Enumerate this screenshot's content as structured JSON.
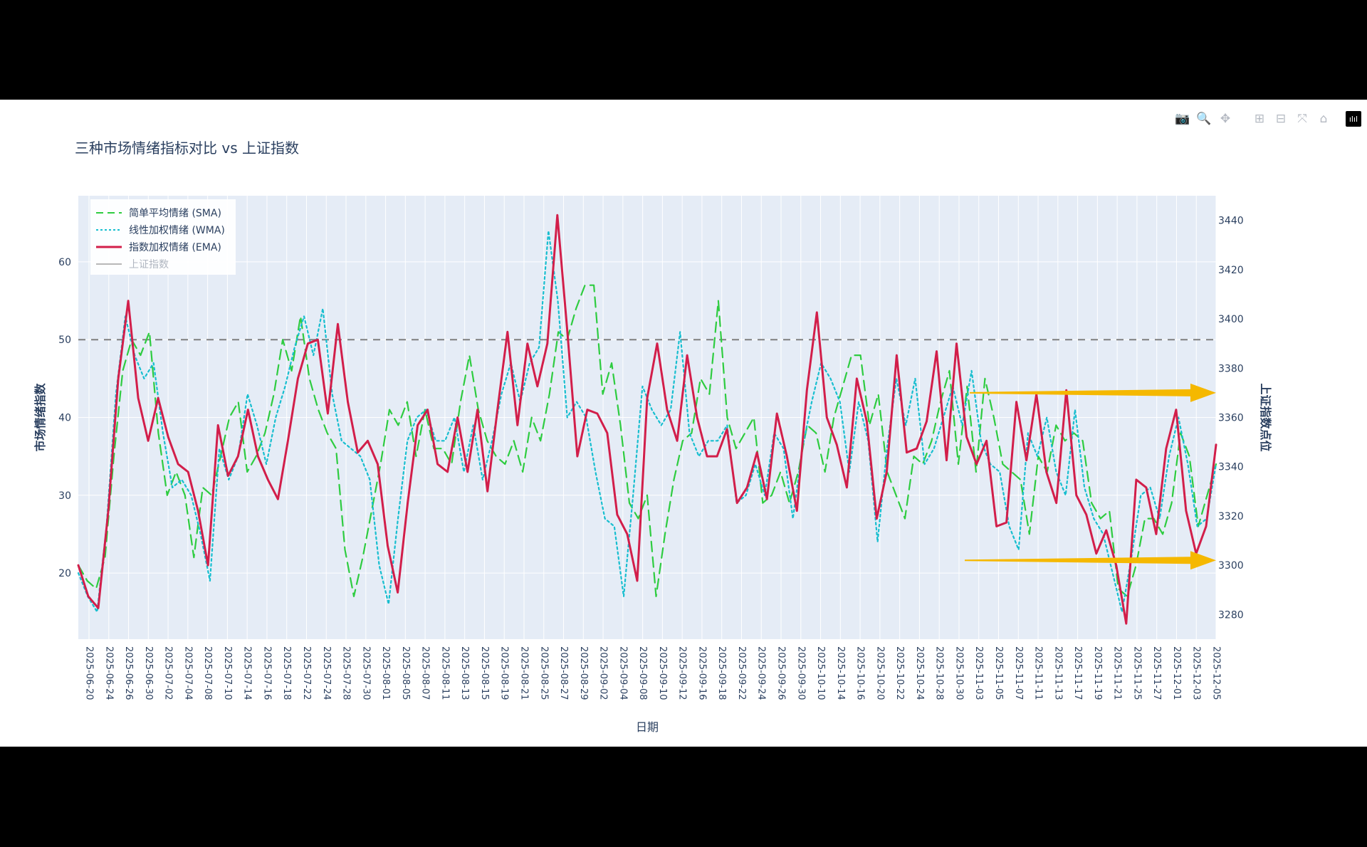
{
  "title": "三种市场情绪指标对比 vs 上证指数",
  "toolbar": {
    "icons": [
      "camera-icon",
      "zoom-icon",
      "pan-icon",
      "zoom-in-icon",
      "zoom-out-icon",
      "autoscale-icon",
      "reset-axes-icon",
      "plotly-logo"
    ],
    "glyphs": [
      "📷",
      "🔍",
      "✥",
      "⊞",
      "⊟",
      "⤧",
      "⌂",
      "ılıl"
    ]
  },
  "colors": {
    "sma": "#2ecc40",
    "wma": "#17becf",
    "ema": "#d21e4a",
    "index": "#b8b8b8",
    "plot_bg": "#e5ecf6",
    "grid": "#ffffff",
    "ref_line": "#7f7f7f",
    "arrow": "#f5b800",
    "text": "#2a3f5f"
  },
  "chart_data": {
    "type": "line",
    "title": "三种市场情绪指标对比 vs 上证指数",
    "xlabel": "日期",
    "ylabel": "市场情绪指数",
    "y2label": "上证指数点位",
    "ylim": [
      11.5,
      68.5
    ],
    "y2lim": [
      3270,
      3450
    ],
    "yticks": [
      20,
      30,
      40,
      50,
      60
    ],
    "y2ticks": [
      3280,
      3300,
      3320,
      3340,
      3360,
      3380,
      3400,
      3420,
      3440
    ],
    "reference_line": 50,
    "x_tick_labels": [
      "2025-06-20",
      "2025-06-24",
      "2025-06-26",
      "2025-06-30",
      "2025-07-02",
      "2025-07-04",
      "2025-07-08",
      "2025-07-10",
      "2025-07-14",
      "2025-07-16",
      "2025-07-18",
      "2025-07-22",
      "2025-07-24",
      "2025-07-28",
      "2025-07-30",
      "2025-08-01",
      "2025-08-05",
      "2025-08-07",
      "2025-08-11",
      "2025-08-13",
      "2025-08-15",
      "2025-08-19",
      "2025-08-21",
      "2025-08-25",
      "2025-08-27",
      "2025-08-29",
      "2025-09-02",
      "2025-09-04",
      "2025-09-08",
      "2025-09-10",
      "2025-09-12",
      "2025-09-16",
      "2025-09-18",
      "2025-09-22",
      "2025-09-24",
      "2025-09-26",
      "2025-09-30",
      "2025-10-10",
      "2025-10-14",
      "2025-10-16",
      "2025-10-20",
      "2025-10-22",
      "2025-10-24",
      "2025-10-28",
      "2025-10-30",
      "2025-11-03",
      "2025-11-05",
      "2025-11-07",
      "2025-11-11",
      "2025-11-13",
      "2025-11-17",
      "2025-11-19",
      "2025-11-21",
      "2025-11-25",
      "2025-11-27",
      "2025-12-01",
      "2025-12-03",
      "2025-12-05"
    ],
    "legend_position": "top-left",
    "series": [
      {
        "name": "简单平均情绪 (SMA)",
        "key": "sma",
        "style": "dash",
        "values": [
          21,
          19,
          18,
          22,
          35,
          46,
          50,
          48,
          51,
          38,
          30,
          33,
          30,
          22,
          31,
          30,
          35,
          40,
          42,
          33,
          35,
          38,
          43,
          50,
          46,
          53,
          45,
          41,
          38,
          36,
          23,
          17,
          22,
          28,
          34,
          41,
          39,
          42,
          35,
          41,
          36,
          36,
          34,
          42,
          48,
          41,
          37,
          35,
          34,
          37,
          33,
          40,
          37,
          43,
          51,
          50,
          54,
          57,
          57,
          43,
          47,
          39,
          29,
          27,
          30,
          17,
          25,
          32,
          37,
          38,
          45,
          43,
          55,
          40,
          36,
          38,
          40,
          29,
          30,
          33,
          29,
          33,
          39,
          38,
          33,
          40,
          44,
          48,
          48,
          39,
          43,
          33,
          30,
          27,
          35,
          34,
          37,
          42,
          46,
          34,
          44,
          33,
          45,
          40,
          34,
          33,
          32,
          25,
          35,
          33,
          39,
          37,
          38,
          37,
          29,
          27,
          28,
          18,
          17,
          21,
          27,
          27,
          25,
          29,
          38,
          35,
          26,
          30,
          34
        ],
        "highlight": null
      },
      {
        "name": "线性加权情绪 (WMA)",
        "key": "wma",
        "style": "dot",
        "values": [
          20,
          17,
          15,
          26,
          43,
          53,
          48,
          45,
          47,
          38,
          31,
          32,
          30,
          25,
          19,
          36,
          32,
          35,
          43,
          39,
          34,
          40,
          44,
          49,
          53,
          48,
          54,
          43,
          37,
          36,
          35,
          32,
          21,
          16,
          27,
          37,
          40,
          41,
          37,
          37,
          40,
          33,
          39,
          32,
          37,
          43,
          47,
          42,
          47,
          49,
          64,
          55,
          40,
          42,
          40,
          33,
          27,
          26,
          17,
          30,
          44,
          41,
          39,
          41,
          51,
          38,
          35,
          37,
          37,
          39,
          29,
          30,
          34,
          30,
          38,
          36,
          27,
          36,
          42,
          47,
          45,
          42,
          33,
          42,
          37,
          24,
          36,
          45,
          39,
          45,
          34,
          36,
          40,
          44,
          39,
          46,
          37,
          34,
          33,
          26,
          23,
          38,
          35,
          40,
          33,
          30,
          41,
          31,
          27,
          25,
          20,
          15,
          22,
          30,
          31,
          27,
          35,
          40,
          34,
          26,
          27,
          34
        ],
        "highlight": null
      },
      {
        "name": "指数加权情绪 (EMA)",
        "key": "ema",
        "style": "solid",
        "values": [
          21,
          17,
          15.5,
          28,
          45,
          55,
          42.5,
          37,
          42.5,
          37.5,
          34,
          33,
          28,
          21,
          39,
          32.5,
          35,
          41,
          35,
          32,
          29.5,
          37,
          45,
          49.5,
          50,
          40.5,
          52,
          42,
          35.5,
          37,
          34,
          23.5,
          17.5,
          29,
          39,
          41,
          34,
          33,
          40,
          33,
          41,
          30.5,
          41,
          51,
          39,
          49.5,
          44,
          49.5,
          66,
          51,
          35,
          41,
          40.5,
          38,
          27.5,
          25,
          19,
          42.5,
          49.5,
          41,
          37,
          48,
          40,
          35,
          35,
          38.5,
          29,
          31,
          35.5,
          29.5,
          40.5,
          35,
          28,
          43.5,
          53.5,
          40,
          36.5,
          31,
          45,
          39.5,
          27,
          33,
          48,
          35.5,
          36,
          39.5,
          48.5,
          34.5,
          49.5,
          37.5,
          34,
          37,
          26,
          26.5,
          42,
          34.5,
          43,
          33,
          29,
          43.5,
          30,
          27.5,
          22.5,
          25.5,
          21,
          13.5,
          32,
          31,
          25,
          36,
          41,
          28,
          22.5,
          26,
          36.5
        ],
        "highlight": null
      },
      {
        "name": "上证指数",
        "key": "index",
        "style": "solid",
        "visible": false,
        "values": []
      }
    ],
    "annotations": [
      {
        "type": "arrow",
        "y2": 3370,
        "direction": "right"
      },
      {
        "type": "arrow",
        "y2": 3302,
        "direction": "right"
      }
    ]
  },
  "legend": [
    {
      "label": "简单平均情绪 (SMA)",
      "key": "sma",
      "dim": false
    },
    {
      "label": "线性加权情绪 (WMA)",
      "key": "wma",
      "dim": false
    },
    {
      "label": "指数加权情绪 (EMA)",
      "key": "ema",
      "dim": false
    },
    {
      "label": "上证指数",
      "key": "index",
      "dim": true
    }
  ]
}
